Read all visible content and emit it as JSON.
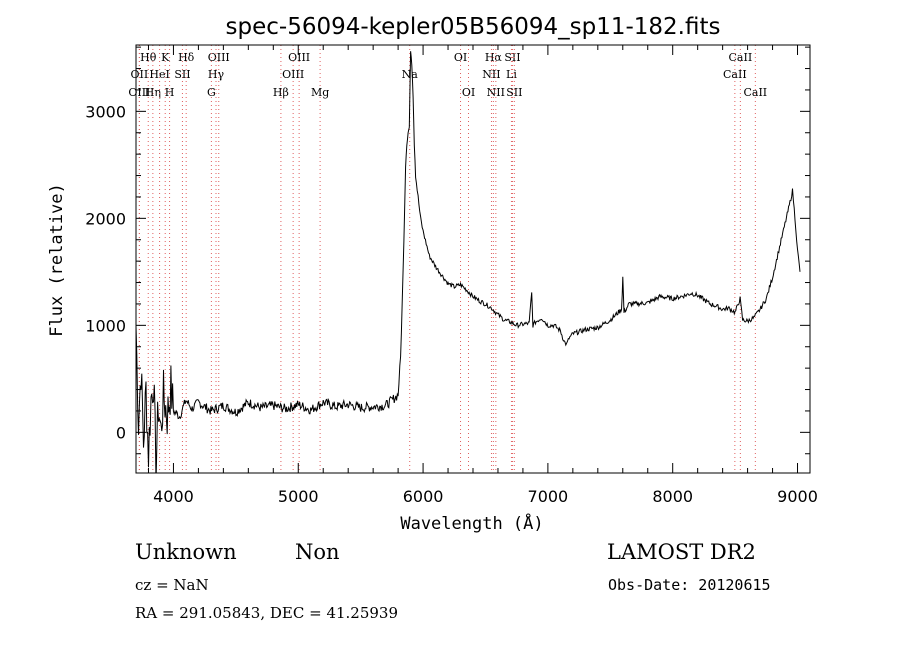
{
  "chart_data": {
    "type": "line",
    "title": "spec-56094-kepler05B56094_sp11-182.fits",
    "xlabel": "Wavelength (Å)",
    "ylabel": "Flux (relative)",
    "xlim": [
      3700,
      9100
    ],
    "ylim": [
      -380,
      3620
    ],
    "xticks": [
      4000,
      5000,
      6000,
      7000,
      8000,
      9000
    ],
    "yticks": [
      0,
      1000,
      2000,
      3000
    ],
    "grid": false,
    "series": [
      {
        "x": [
          3700,
          3720,
          3740,
          3760,
          3780,
          3800,
          3820,
          3840,
          3860,
          3880,
          3900,
          3920,
          3950,
          3980,
          4000,
          4050,
          4100,
          4150,
          4200,
          4300,
          4400,
          4500,
          4600,
          4700,
          4800,
          4900,
          5000,
          5100,
          5200,
          5300,
          5400,
          5500,
          5600,
          5700,
          5750,
          5800,
          5820,
          5840,
          5860,
          5870,
          5880,
          5890,
          5900,
          5910,
          5920,
          5930,
          5940,
          5960,
          5980,
          6000,
          6050,
          6100,
          6150,
          6200,
          6250,
          6300,
          6350,
          6400,
          6450,
          6500,
          6550,
          6600,
          6650,
          6700,
          6750,
          6800,
          6850,
          6870,
          6880,
          6900,
          6950,
          7000,
          7050,
          7100,
          7130,
          7150,
          7170,
          7200,
          7250,
          7300,
          7400,
          7500,
          7590,
          7600,
          7610,
          7650,
          7700,
          7800,
          7900,
          8000,
          8100,
          8150,
          8200,
          8300,
          8350,
          8400,
          8450,
          8500,
          8540,
          8560,
          8600,
          8650,
          8700,
          8750,
          8800,
          8850,
          8900,
          8940,
          8960,
          8980,
          9000,
          9020
        ],
        "values": [
          1000,
          100,
          600,
          -100,
          400,
          -200,
          300,
          500,
          -300,
          250,
          0,
          350,
          150,
          420,
          200,
          150,
          300,
          220,
          280,
          200,
          250,
          190,
          280,
          230,
          250,
          220,
          260,
          210,
          280,
          240,
          260,
          230,
          240,
          250,
          300,
          350,
          700,
          1500,
          2500,
          2700,
          2800,
          2850,
          3580,
          3450,
          3150,
          2700,
          2400,
          2200,
          2000,
          1880,
          1650,
          1550,
          1470,
          1390,
          1360,
          1380,
          1330,
          1270,
          1230,
          1200,
          1160,
          1100,
          1050,
          1030,
          1000,
          1010,
          1020,
          1300,
          1000,
          1030,
          1070,
          1000,
          1000,
          950,
          850,
          820,
          880,
          920,
          940,
          960,
          980,
          1050,
          1150,
          1450,
          1120,
          1200,
          1200,
          1210,
          1270,
          1250,
          1280,
          1300,
          1280,
          1200,
          1180,
          1150,
          1160,
          1120,
          1250,
          1050,
          1040,
          1070,
          1150,
          1250,
          1450,
          1700,
          1950,
          2150,
          2260,
          2000,
          1700,
          1500
        ]
      }
    ],
    "spectral_lines": [
      {
        "label": "Hθ",
        "wavelength": 3798,
        "row": 1
      },
      {
        "label": "OII",
        "wavelength": 3727,
        "row": 2
      },
      {
        "label": "OIII",
        "wavelength": 3727,
        "row": 3
      },
      {
        "label": "Hη",
        "wavelength": 3835,
        "row": 3
      },
      {
        "label": "K",
        "wavelength": 3934,
        "row": 1
      },
      {
        "label": "HeI",
        "wavelength": 3889,
        "row": 2
      },
      {
        "label": "H",
        "wavelength": 3969,
        "row": 3
      },
      {
        "label": "SII",
        "wavelength": 4072,
        "row": 2
      },
      {
        "label": "Hδ",
        "wavelength": 4102,
        "row": 1
      },
      {
        "label": "OIII",
        "wavelength": 4363,
        "row": 1
      },
      {
        "label": "Hγ",
        "wavelength": 4341,
        "row": 2
      },
      {
        "label": "G",
        "wavelength": 4304,
        "row": 3
      },
      {
        "label": "Hβ",
        "wavelength": 4861,
        "row": 3
      },
      {
        "label": "OIII",
        "wavelength": 4959,
        "row": 2
      },
      {
        "label": "OIII",
        "wavelength": 5007,
        "row": 1
      },
      {
        "label": "Mg",
        "wavelength": 5175,
        "row": 3
      },
      {
        "label": "Na",
        "wavelength": 5893,
        "row": 2
      },
      {
        "label": "OI",
        "wavelength": 6300,
        "row": 1
      },
      {
        "label": "OI",
        "wavelength": 6364,
        "row": 3
      },
      {
        "label": "Hα",
        "wavelength": 6563,
        "row": 1
      },
      {
        "label": "NII",
        "wavelength": 6548,
        "row": 2
      },
      {
        "label": "NII",
        "wavelength": 6583,
        "row": 3
      },
      {
        "label": "SII",
        "wavelength": 6716,
        "row": 1
      },
      {
        "label": "Li",
        "wavelength": 6708,
        "row": 2
      },
      {
        "label": "SII",
        "wavelength": 6731,
        "row": 3
      },
      {
        "label": "CaII",
        "wavelength": 8542,
        "row": 1
      },
      {
        "label": "CaII",
        "wavelength": 8498,
        "row": 2
      },
      {
        "label": "CaII",
        "wavelength": 8662,
        "row": 3
      }
    ]
  },
  "footer": {
    "class": "Unknown",
    "subclass": "Non",
    "survey": "LAMOST DR2",
    "cz": "cz = NaN",
    "obs_date": "Obs-Date: 20120615",
    "coords": "RA = 291.05843, DEC =  41.25939"
  }
}
